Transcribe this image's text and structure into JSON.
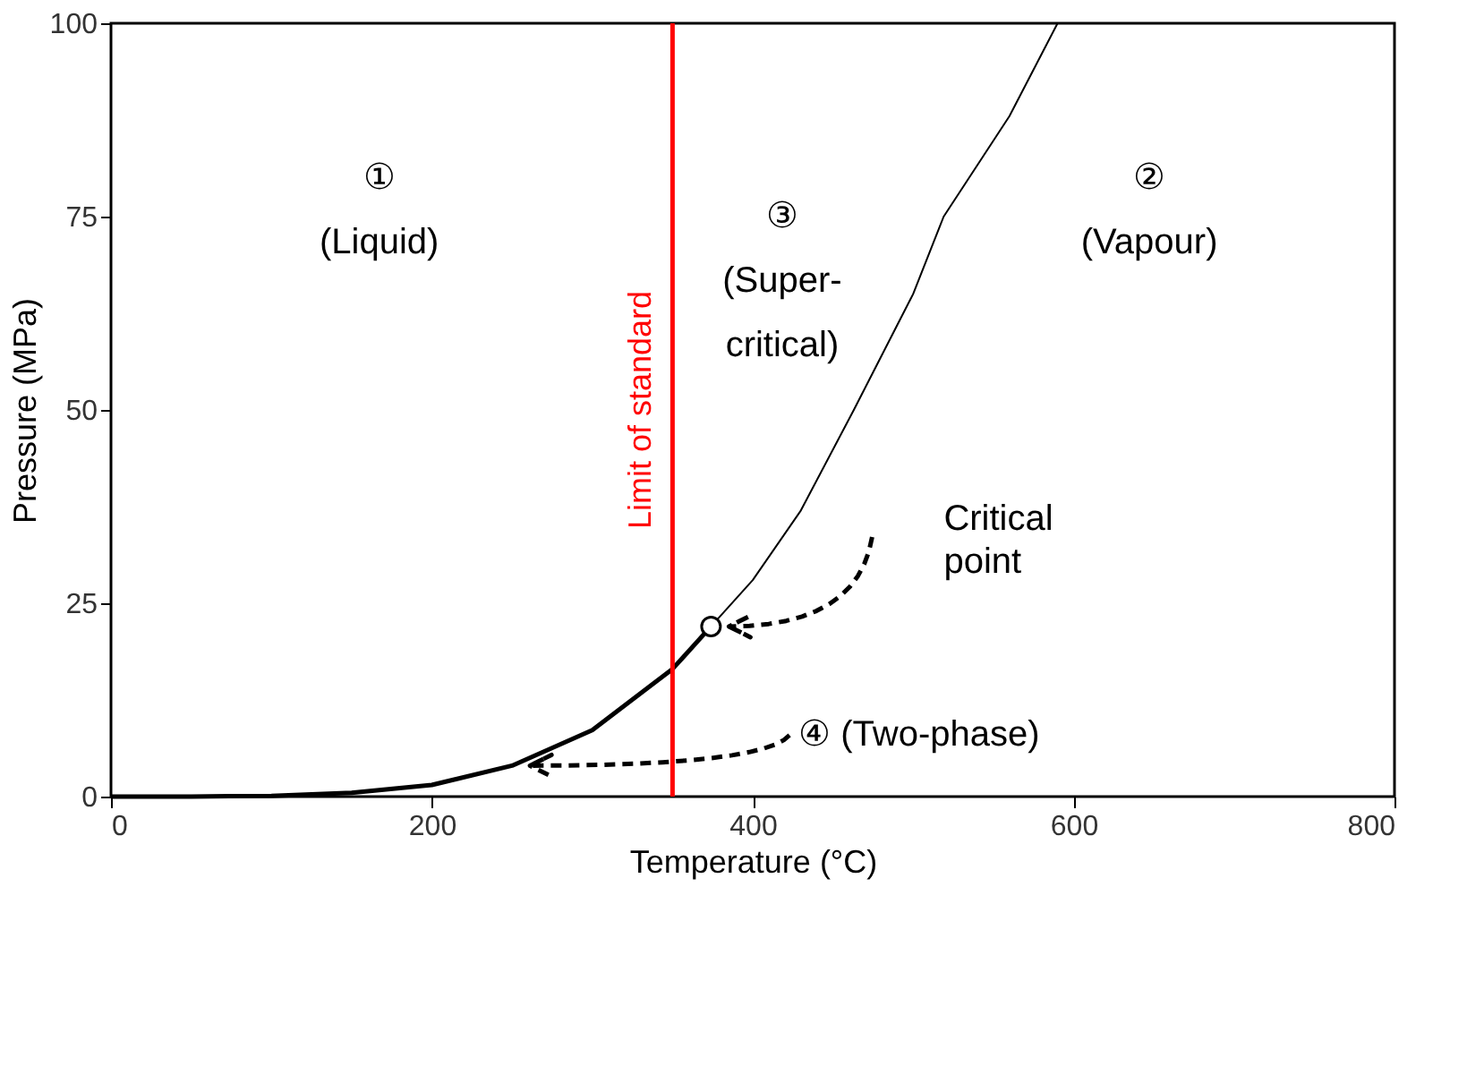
{
  "chart_data": {
    "type": "line",
    "xlabel": "Temperature (°C)",
    "ylabel": "Pressure (MPa)",
    "xlim": [
      0,
      800
    ],
    "ylim": [
      0,
      100
    ],
    "xticks": [
      0,
      200,
      400,
      600,
      800
    ],
    "yticks": [
      0,
      25,
      50,
      75,
      100
    ],
    "grid": false,
    "line_style": "solid",
    "marker": "none",
    "series": [
      {
        "color": "#000000",
        "x": [
          0,
          50,
          100,
          150,
          200,
          250,
          300,
          350,
          374
        ],
        "values": [
          0,
          0,
          0.1,
          0.5,
          1.5,
          4,
          8.6,
          16.5,
          22
        ]
      },
      {
        "color": "#000000",
        "x": [
          374,
          400,
          430,
          463,
          500,
          519,
          560,
          590
        ],
        "values": [
          22,
          28,
          37,
          50,
          65,
          75,
          88,
          100
        ]
      },
      {
        "type": "scatter",
        "color": "#ffffff",
        "marker": "circle",
        "x": [
          374
        ],
        "values": [
          22
        ]
      }
    ],
    "ref_lines": [
      {
        "axis": "x",
        "value": 350,
        "label": "Limit of standard",
        "color": "#ff0000"
      }
    ],
    "annotations": [
      "①\n(Liquid)",
      "③\n(Super-\ncritical)",
      "②\n(Vapour)",
      "Critical\npoint",
      "④ (Two-phase)"
    ]
  }
}
